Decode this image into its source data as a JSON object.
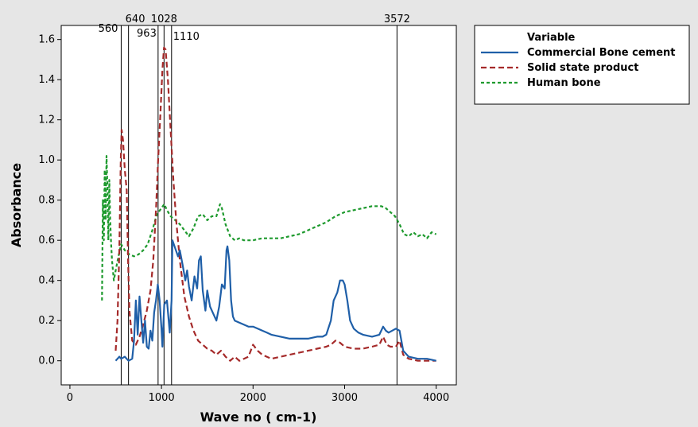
{
  "chart_data": {
    "type": "line",
    "xlabel": "Wave no ( cm-1)",
    "ylabel": "Absorbance",
    "xlim": [
      -95,
      4220
    ],
    "ylim": [
      -0.12,
      1.67
    ],
    "x_ticks": [
      0,
      1000,
      2000,
      3000,
      4000
    ],
    "x_tick_labels": [
      "0",
      "1000",
      "2000",
      "3000",
      "4000"
    ],
    "y_ticks": [
      0.0,
      0.2,
      0.4,
      0.6,
      0.8,
      1.0,
      1.2,
      1.4,
      1.6
    ],
    "y_tick_labels": [
      "0.0",
      "0.2",
      "0.4",
      "0.6",
      "0.8",
      "1.0",
      "1.2",
      "1.4",
      "1.6"
    ],
    "grid": false,
    "legend_position": "right",
    "legend_title": "Variable",
    "reference_lines": [
      {
        "x": 560,
        "label": "560"
      },
      {
        "x": 640,
        "label": "640"
      },
      {
        "x": 963,
        "label": "963"
      },
      {
        "x": 1028,
        "label": "1028"
      },
      {
        "x": 1110,
        "label": "1110"
      },
      {
        "x": 3572,
        "label": "3572"
      }
    ],
    "series": [
      {
        "name": "Commercial  Bone cement",
        "color": "#1f5fa8",
        "dash": "solid",
        "points": [
          [
            500,
            0.0
          ],
          [
            540,
            0.02
          ],
          [
            560,
            0.01
          ],
          [
            600,
            0.02
          ],
          [
            640,
            0.0
          ],
          [
            680,
            0.01
          ],
          [
            700,
            0.1
          ],
          [
            720,
            0.3
          ],
          [
            740,
            0.13
          ],
          [
            760,
            0.32
          ],
          [
            780,
            0.2
          ],
          [
            800,
            0.09
          ],
          [
            820,
            0.2
          ],
          [
            840,
            0.07
          ],
          [
            860,
            0.06
          ],
          [
            880,
            0.15
          ],
          [
            900,
            0.1
          ],
          [
            920,
            0.24
          ],
          [
            940,
            0.3
          ],
          [
            960,
            0.38
          ],
          [
            980,
            0.3
          ],
          [
            1000,
            0.16
          ],
          [
            1010,
            0.07
          ],
          [
            1030,
            0.28
          ],
          [
            1060,
            0.3
          ],
          [
            1090,
            0.14
          ],
          [
            1110,
            0.3
          ],
          [
            1120,
            0.6
          ],
          [
            1150,
            0.56
          ],
          [
            1180,
            0.52
          ],
          [
            1200,
            0.55
          ],
          [
            1230,
            0.48
          ],
          [
            1260,
            0.4
          ],
          [
            1280,
            0.45
          ],
          [
            1300,
            0.37
          ],
          [
            1330,
            0.3
          ],
          [
            1360,
            0.42
          ],
          [
            1390,
            0.36
          ],
          [
            1410,
            0.5
          ],
          [
            1430,
            0.52
          ],
          [
            1450,
            0.35
          ],
          [
            1480,
            0.25
          ],
          [
            1500,
            0.35
          ],
          [
            1530,
            0.27
          ],
          [
            1560,
            0.24
          ],
          [
            1600,
            0.2
          ],
          [
            1630,
            0.27
          ],
          [
            1660,
            0.38
          ],
          [
            1690,
            0.36
          ],
          [
            1710,
            0.55
          ],
          [
            1720,
            0.57
          ],
          [
            1740,
            0.5
          ],
          [
            1760,
            0.3
          ],
          [
            1780,
            0.22
          ],
          [
            1800,
            0.2
          ],
          [
            1850,
            0.19
          ],
          [
            1900,
            0.18
          ],
          [
            1950,
            0.17
          ],
          [
            2000,
            0.17
          ],
          [
            2050,
            0.16
          ],
          [
            2100,
            0.15
          ],
          [
            2150,
            0.14
          ],
          [
            2200,
            0.13
          ],
          [
            2300,
            0.12
          ],
          [
            2400,
            0.11
          ],
          [
            2500,
            0.11
          ],
          [
            2600,
            0.11
          ],
          [
            2700,
            0.12
          ],
          [
            2760,
            0.12
          ],
          [
            2800,
            0.13
          ],
          [
            2850,
            0.2
          ],
          [
            2880,
            0.3
          ],
          [
            2920,
            0.34
          ],
          [
            2950,
            0.4
          ],
          [
            2980,
            0.4
          ],
          [
            3000,
            0.38
          ],
          [
            3030,
            0.3
          ],
          [
            3060,
            0.2
          ],
          [
            3100,
            0.16
          ],
          [
            3150,
            0.14
          ],
          [
            3200,
            0.13
          ],
          [
            3300,
            0.12
          ],
          [
            3380,
            0.13
          ],
          [
            3420,
            0.17
          ],
          [
            3450,
            0.15
          ],
          [
            3480,
            0.14
          ],
          [
            3520,
            0.15
          ],
          [
            3560,
            0.16
          ],
          [
            3600,
            0.15
          ],
          [
            3620,
            0.1
          ],
          [
            3640,
            0.05
          ],
          [
            3700,
            0.02
          ],
          [
            3800,
            0.01
          ],
          [
            3900,
            0.01
          ],
          [
            4000,
            0.0
          ]
        ]
      },
      {
        "name": "Solid state product",
        "color": "#a52a2a",
        "dash": "7,4",
        "points": [
          [
            500,
            0.05
          ],
          [
            520,
            0.2
          ],
          [
            540,
            0.55
          ],
          [
            555,
            1.0
          ],
          [
            565,
            1.15
          ],
          [
            580,
            1.1
          ],
          [
            600,
            0.95
          ],
          [
            620,
            0.85
          ],
          [
            635,
            0.5
          ],
          [
            650,
            0.25
          ],
          [
            680,
            0.1
          ],
          [
            720,
            0.08
          ],
          [
            760,
            0.12
          ],
          [
            800,
            0.18
          ],
          [
            840,
            0.25
          ],
          [
            880,
            0.35
          ],
          [
            910,
            0.5
          ],
          [
            940,
            0.75
          ],
          [
            963,
            1.0
          ],
          [
            990,
            1.25
          ],
          [
            1010,
            1.45
          ],
          [
            1028,
            1.56
          ],
          [
            1045,
            1.55
          ],
          [
            1070,
            1.4
          ],
          [
            1100,
            1.15
          ],
          [
            1130,
            0.9
          ],
          [
            1160,
            0.7
          ],
          [
            1200,
            0.5
          ],
          [
            1250,
            0.32
          ],
          [
            1300,
            0.22
          ],
          [
            1350,
            0.15
          ],
          [
            1400,
            0.1
          ],
          [
            1450,
            0.08
          ],
          [
            1500,
            0.06
          ],
          [
            1550,
            0.05
          ],
          [
            1600,
            0.03
          ],
          [
            1650,
            0.05
          ],
          [
            1700,
            0.02
          ],
          [
            1750,
            0.0
          ],
          [
            1800,
            0.02
          ],
          [
            1850,
            0.0
          ],
          [
            1900,
            0.01
          ],
          [
            1950,
            0.02
          ],
          [
            2000,
            0.08
          ],
          [
            2050,
            0.05
          ],
          [
            2100,
            0.03
          ],
          [
            2150,
            0.02
          ],
          [
            2200,
            0.01
          ],
          [
            2300,
            0.02
          ],
          [
            2400,
            0.03
          ],
          [
            2500,
            0.04
          ],
          [
            2600,
            0.05
          ],
          [
            2700,
            0.06
          ],
          [
            2800,
            0.07
          ],
          [
            2850,
            0.08
          ],
          [
            2900,
            0.1
          ],
          [
            2950,
            0.09
          ],
          [
            3000,
            0.07
          ],
          [
            3100,
            0.06
          ],
          [
            3200,
            0.06
          ],
          [
            3300,
            0.07
          ],
          [
            3380,
            0.08
          ],
          [
            3420,
            0.12
          ],
          [
            3460,
            0.08
          ],
          [
            3500,
            0.07
          ],
          [
            3560,
            0.07
          ],
          [
            3600,
            0.1
          ],
          [
            3640,
            0.03
          ],
          [
            3700,
            0.01
          ],
          [
            3800,
            0.0
          ],
          [
            4000,
            0.0
          ]
        ]
      },
      {
        "name": "Human  bone",
        "color": "#1e9a2e",
        "dash": "4,3",
        "points": [
          [
            350,
            0.3
          ],
          [
            360,
            0.8
          ],
          [
            370,
            0.6
          ],
          [
            380,
            0.95
          ],
          [
            390,
            0.7
          ],
          [
            400,
            1.02
          ],
          [
            410,
            0.85
          ],
          [
            420,
            0.6
          ],
          [
            430,
            0.9
          ],
          [
            440,
            0.7
          ],
          [
            450,
            0.58
          ],
          [
            460,
            0.5
          ],
          [
            480,
            0.4
          ],
          [
            500,
            0.45
          ],
          [
            530,
            0.52
          ],
          [
            560,
            0.58
          ],
          [
            600,
            0.55
          ],
          [
            650,
            0.53
          ],
          [
            700,
            0.52
          ],
          [
            750,
            0.53
          ],
          [
            800,
            0.55
          ],
          [
            850,
            0.58
          ],
          [
            900,
            0.65
          ],
          [
            950,
            0.73
          ],
          [
            1000,
            0.76
          ],
          [
            1030,
            0.78
          ],
          [
            1060,
            0.75
          ],
          [
            1100,
            0.72
          ],
          [
            1150,
            0.7
          ],
          [
            1200,
            0.68
          ],
          [
            1250,
            0.65
          ],
          [
            1300,
            0.62
          ],
          [
            1350,
            0.66
          ],
          [
            1400,
            0.72
          ],
          [
            1450,
            0.73
          ],
          [
            1500,
            0.7
          ],
          [
            1550,
            0.72
          ],
          [
            1600,
            0.72
          ],
          [
            1640,
            0.78
          ],
          [
            1660,
            0.76
          ],
          [
            1700,
            0.68
          ],
          [
            1750,
            0.62
          ],
          [
            1800,
            0.6
          ],
          [
            1850,
            0.61
          ],
          [
            1900,
            0.6
          ],
          [
            2000,
            0.6
          ],
          [
            2100,
            0.61
          ],
          [
            2200,
            0.61
          ],
          [
            2300,
            0.61
          ],
          [
            2400,
            0.62
          ],
          [
            2500,
            0.63
          ],
          [
            2600,
            0.65
          ],
          [
            2700,
            0.67
          ],
          [
            2800,
            0.69
          ],
          [
            2900,
            0.72
          ],
          [
            3000,
            0.74
          ],
          [
            3100,
            0.75
          ],
          [
            3200,
            0.76
          ],
          [
            3300,
            0.77
          ],
          [
            3400,
            0.77
          ],
          [
            3450,
            0.76
          ],
          [
            3500,
            0.74
          ],
          [
            3550,
            0.72
          ],
          [
            3600,
            0.68
          ],
          [
            3650,
            0.63
          ],
          [
            3700,
            0.62
          ],
          [
            3750,
            0.64
          ],
          [
            3800,
            0.62
          ],
          [
            3850,
            0.63
          ],
          [
            3900,
            0.61
          ],
          [
            3950,
            0.64
          ],
          [
            4000,
            0.63
          ]
        ]
      }
    ]
  }
}
